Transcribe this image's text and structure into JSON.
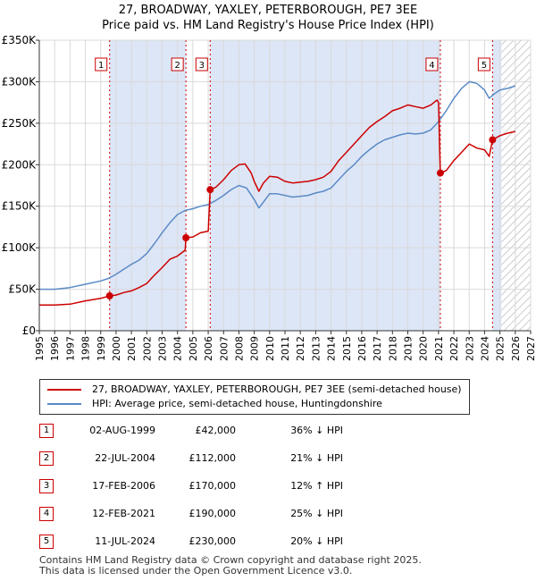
{
  "title_line1": "27, BROADWAY, YAXLEY, PETERBOROUGH, PE7 3EE",
  "title_line2": "Price paid vs. HM Land Registry's House Price Index (HPI)",
  "chart_data": {
    "type": "line",
    "title": "27, BROADWAY, YAXLEY, PETERBOROUGH, PE7 3EE — Price paid vs. HM Land Registry's House Price Index (HPI)",
    "xlabel": "",
    "ylabel": "",
    "xlim": [
      1995,
      2027
    ],
    "ylim": [
      0,
      350000
    ],
    "x_ticks": [
      "1995",
      "1996",
      "1997",
      "1998",
      "1999",
      "2000",
      "2001",
      "2002",
      "2003",
      "2004",
      "2005",
      "2006",
      "2007",
      "2008",
      "2009",
      "2010",
      "2011",
      "2012",
      "2013",
      "2014",
      "2015",
      "2016",
      "2017",
      "2018",
      "2019",
      "2020",
      "2021",
      "2022",
      "2023",
      "2024",
      "2025",
      "2026",
      "2027"
    ],
    "y_ticks": [
      {
        "value": 0,
        "label": "£0"
      },
      {
        "value": 50000,
        "label": "£50K"
      },
      {
        "value": 100000,
        "label": "£100K"
      },
      {
        "value": 150000,
        "label": "£150K"
      },
      {
        "value": 200000,
        "label": "£200K"
      },
      {
        "value": 250000,
        "label": "£250K"
      },
      {
        "value": 300000,
        "label": "£300K"
      },
      {
        "value": 350000,
        "label": "£350K"
      }
    ],
    "grid": true,
    "future_hatch_from": 2025.1,
    "shaded_periods": [
      [
        1999.58,
        2004.55
      ],
      [
        2006.13,
        2021.12
      ],
      [
        2024.52,
        2025.1
      ]
    ],
    "series": [
      {
        "name": "27, BROADWAY, YAXLEY, PETERBOROUGH, PE7 3EE (semi-detached house)",
        "color": "#cc0000",
        "points": [
          [
            1995.0,
            31000
          ],
          [
            1996.0,
            31000
          ],
          [
            1997.0,
            32000
          ],
          [
            1998.0,
            36000
          ],
          [
            1999.0,
            39000
          ],
          [
            1999.58,
            42000
          ],
          [
            2000.0,
            43000
          ],
          [
            2000.5,
            46000
          ],
          [
            2001.0,
            48000
          ],
          [
            2001.5,
            52000
          ],
          [
            2002.0,
            57000
          ],
          [
            2002.5,
            67000
          ],
          [
            2003.0,
            76000
          ],
          [
            2003.5,
            86000
          ],
          [
            2004.0,
            90000
          ],
          [
            2004.5,
            97000
          ],
          [
            2004.55,
            112000
          ],
          [
            2005.0,
            113000
          ],
          [
            2005.5,
            118000
          ],
          [
            2006.0,
            120000
          ],
          [
            2006.13,
            170000
          ],
          [
            2006.5,
            173000
          ],
          [
            2007.0,
            182000
          ],
          [
            2007.5,
            193000
          ],
          [
            2008.0,
            200000
          ],
          [
            2008.4,
            201000
          ],
          [
            2008.8,
            190000
          ],
          [
            2009.0,
            180000
          ],
          [
            2009.3,
            168000
          ],
          [
            2009.6,
            178000
          ],
          [
            2010.0,
            186000
          ],
          [
            2010.5,
            185000
          ],
          [
            2011.0,
            180000
          ],
          [
            2011.5,
            178000
          ],
          [
            2012.0,
            179000
          ],
          [
            2012.5,
            180000
          ],
          [
            2013.0,
            182000
          ],
          [
            2013.5,
            185000
          ],
          [
            2014.0,
            192000
          ],
          [
            2014.5,
            205000
          ],
          [
            2015.0,
            215000
          ],
          [
            2015.5,
            225000
          ],
          [
            2016.0,
            235000
          ],
          [
            2016.5,
            245000
          ],
          [
            2017.0,
            252000
          ],
          [
            2017.5,
            258000
          ],
          [
            2018.0,
            265000
          ],
          [
            2018.5,
            268000
          ],
          [
            2019.0,
            272000
          ],
          [
            2019.5,
            270000
          ],
          [
            2020.0,
            268000
          ],
          [
            2020.5,
            272000
          ],
          [
            2020.9,
            278000
          ],
          [
            2021.0,
            275000
          ],
          [
            2021.12,
            190000
          ],
          [
            2021.5,
            193000
          ],
          [
            2022.0,
            205000
          ],
          [
            2022.5,
            215000
          ],
          [
            2023.0,
            225000
          ],
          [
            2023.5,
            220000
          ],
          [
            2024.0,
            218000
          ],
          [
            2024.3,
            210000
          ],
          [
            2024.52,
            230000
          ],
          [
            2025.0,
            235000
          ],
          [
            2025.5,
            238000
          ],
          [
            2026.0,
            240000
          ]
        ]
      },
      {
        "name": "HPI: Average price, semi-detached house, Huntingdonshire",
        "color": "#5a8ac6",
        "points": [
          [
            1995.0,
            50000
          ],
          [
            1996.0,
            50000
          ],
          [
            1997.0,
            52000
          ],
          [
            1998.0,
            56000
          ],
          [
            1999.0,
            60000
          ],
          [
            1999.5,
            63000
          ],
          [
            2000.0,
            68000
          ],
          [
            2000.5,
            74000
          ],
          [
            2001.0,
            80000
          ],
          [
            2001.5,
            85000
          ],
          [
            2002.0,
            93000
          ],
          [
            2002.5,
            105000
          ],
          [
            2003.0,
            118000
          ],
          [
            2003.5,
            130000
          ],
          [
            2004.0,
            140000
          ],
          [
            2004.5,
            145000
          ],
          [
            2005.0,
            147000
          ],
          [
            2005.5,
            150000
          ],
          [
            2006.0,
            152000
          ],
          [
            2006.5,
            157000
          ],
          [
            2007.0,
            163000
          ],
          [
            2007.5,
            170000
          ],
          [
            2008.0,
            175000
          ],
          [
            2008.5,
            172000
          ],
          [
            2009.0,
            158000
          ],
          [
            2009.3,
            148000
          ],
          [
            2009.6,
            155000
          ],
          [
            2010.0,
            165000
          ],
          [
            2010.5,
            165000
          ],
          [
            2011.0,
            163000
          ],
          [
            2011.5,
            161000
          ],
          [
            2012.0,
            162000
          ],
          [
            2012.5,
            163000
          ],
          [
            2013.0,
            166000
          ],
          [
            2013.5,
            168000
          ],
          [
            2014.0,
            172000
          ],
          [
            2014.5,
            182000
          ],
          [
            2015.0,
            192000
          ],
          [
            2015.5,
            200000
          ],
          [
            2016.0,
            210000
          ],
          [
            2016.5,
            218000
          ],
          [
            2017.0,
            225000
          ],
          [
            2017.5,
            230000
          ],
          [
            2018.0,
            233000
          ],
          [
            2018.5,
            236000
          ],
          [
            2019.0,
            238000
          ],
          [
            2019.5,
            237000
          ],
          [
            2020.0,
            238000
          ],
          [
            2020.5,
            242000
          ],
          [
            2021.0,
            252000
          ],
          [
            2021.5,
            265000
          ],
          [
            2022.0,
            280000
          ],
          [
            2022.5,
            292000
          ],
          [
            2023.0,
            300000
          ],
          [
            2023.5,
            298000
          ],
          [
            2024.0,
            290000
          ],
          [
            2024.3,
            280000
          ],
          [
            2024.6,
            285000
          ],
          [
            2025.0,
            290000
          ],
          [
            2025.5,
            292000
          ],
          [
            2026.0,
            295000
          ]
        ]
      }
    ],
    "sales": [
      {
        "n": "1",
        "x": 1999.58,
        "y": 42000
      },
      {
        "n": "2",
        "x": 2004.55,
        "y": 112000
      },
      {
        "n": "3",
        "x": 2006.13,
        "y": 170000
      },
      {
        "n": "4",
        "x": 2021.12,
        "y": 190000
      },
      {
        "n": "5",
        "x": 2024.52,
        "y": 230000
      }
    ]
  },
  "legend": {
    "red_label": "27, BROADWAY, YAXLEY, PETERBOROUGH, PE7 3EE (semi-detached house)",
    "blue_label": "HPI: Average price, semi-detached house, Huntingdonshire"
  },
  "sales_table": [
    {
      "n": "1",
      "date": "02-AUG-1999",
      "price": "£42,000",
      "hpi": "36% ↓ HPI"
    },
    {
      "n": "2",
      "date": "22-JUL-2004",
      "price": "£112,000",
      "hpi": "21% ↓ HPI"
    },
    {
      "n": "3",
      "date": "17-FEB-2006",
      "price": "£170,000",
      "hpi": "12% ↑ HPI"
    },
    {
      "n": "4",
      "date": "12-FEB-2021",
      "price": "£190,000",
      "hpi": "25% ↓ HPI"
    },
    {
      "n": "5",
      "date": "11-JUL-2024",
      "price": "£230,000",
      "hpi": "20% ↓ HPI"
    }
  ],
  "footer_line1": "Contains HM Land Registry data © Crown copyright and database right 2025.",
  "footer_line2": "This data is licensed under the Open Government Licence v3.0.",
  "colors": {
    "red": "#cc0000",
    "blue": "#5a8ac6",
    "shade": "#dde6f7",
    "grid": "#d9d9d9"
  }
}
